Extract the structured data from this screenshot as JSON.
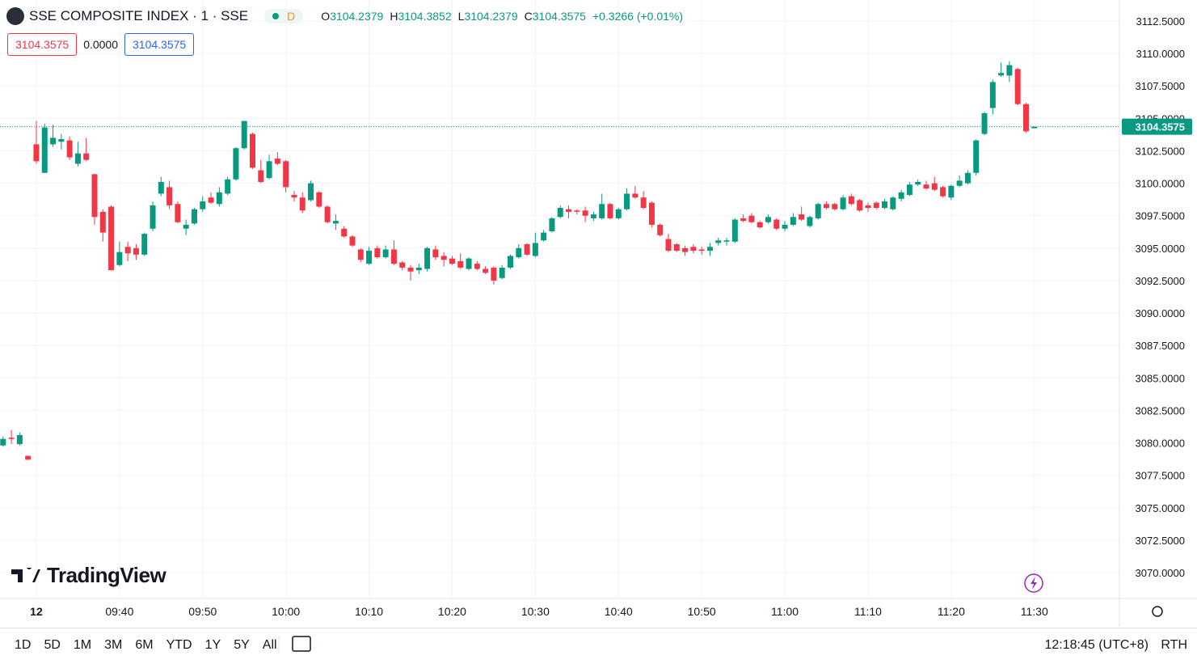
{
  "header": {
    "title": "SSE COMPOSITE INDEX · 1 · SSE",
    "interval_badge": "D",
    "ohlc": [
      {
        "key": "O",
        "value": "3104.2379"
      },
      {
        "key": "H",
        "value": "3104.3852"
      },
      {
        "key": "L",
        "value": "3104.2379"
      },
      {
        "key": "C",
        "value": "3104.3575"
      }
    ],
    "change": "+0.3266 (+0.01%)",
    "boxes": [
      "3104.3575",
      "0.0000",
      "3104.3575"
    ]
  },
  "logo": "TradingView",
  "toolbar": {
    "periods": [
      "1D",
      "5D",
      "1M",
      "3M",
      "6M",
      "YTD",
      "1Y",
      "5Y",
      "All"
    ],
    "clock": "12:18:45 (UTC+8)",
    "session": "RTH"
  },
  "chart_data": {
    "type": "candlestick",
    "up_color": "#089981",
    "down_color": "#f23645",
    "last_price": {
      "value": 3104.3575,
      "label": "3104.3575"
    },
    "ylim": [
      3070,
      3112.5
    ],
    "yticks": [
      {
        "value": 3070,
        "label": "3070.0000"
      },
      {
        "value": 3072.5,
        "label": "3072.5000"
      },
      {
        "value": 3075,
        "label": "3075.0000"
      },
      {
        "value": 3077.5,
        "label": "3077.5000"
      },
      {
        "value": 3080,
        "label": "3080.0000"
      },
      {
        "value": 3082.5,
        "label": "3082.5000"
      },
      {
        "value": 3085,
        "label": "3085.0000"
      },
      {
        "value": 3087.5,
        "label": "3087.5000"
      },
      {
        "value": 3090,
        "label": "3090.0000"
      },
      {
        "value": 3092.5,
        "label": "3092.5000"
      },
      {
        "value": 3095,
        "label": "3095.0000"
      },
      {
        "value": 3097.5,
        "label": "3097.5000"
      },
      {
        "value": 3100,
        "label": "3100.0000"
      },
      {
        "value": 3102.5,
        "label": "3102.5000"
      },
      {
        "value": 3105,
        "label": "3105.0000"
      },
      {
        "value": 3107.5,
        "label": "3107.5000"
      },
      {
        "value": 3110,
        "label": "3110.0000"
      },
      {
        "value": 3112.5,
        "label": "3112.5000"
      }
    ],
    "xticks": [
      {
        "value": 4,
        "label": "12"
      },
      {
        "value": 14,
        "label": "09:40"
      },
      {
        "value": 24,
        "label": "09:50"
      },
      {
        "value": 34,
        "label": "10:00"
      },
      {
        "value": 44,
        "label": "10:10"
      },
      {
        "value": 54,
        "label": "10:20"
      },
      {
        "value": 64,
        "label": "10:30"
      },
      {
        "value": 74,
        "label": "10:40"
      },
      {
        "value": 84,
        "label": "10:50"
      },
      {
        "value": 94,
        "label": "11:00"
      },
      {
        "value": 104,
        "label": "11:10"
      },
      {
        "value": 114,
        "label": "11:20"
      },
      {
        "value": 124,
        "label": "11:30"
      }
    ],
    "grid": true,
    "ohlc": [
      [
        3079.8,
        3080.5,
        3079.7,
        3080.3
      ],
      [
        3080.4,
        3081.0,
        3079.9,
        3080.3
      ],
      [
        3079.9,
        3080.8,
        3079.8,
        3080.6
      ],
      [
        3079.0,
        3079.0,
        3078.7,
        3078.7
      ],
      [
        3103.0,
        3104.8,
        3101.5,
        3101.7
      ],
      [
        3100.8,
        3104.6,
        3100.8,
        3104.3
      ],
      [
        3103.0,
        3104.5,
        3102.8,
        3103.5
      ],
      [
        3103.2,
        3103.8,
        3102.6,
        3103.4
      ],
      [
        3103.3,
        3103.6,
        3101.8,
        3102.0
      ],
      [
        3101.5,
        3103.2,
        3101.3,
        3102.3
      ],
      [
        3102.3,
        3103.5,
        3101.7,
        3101.8
      ],
      [
        3100.7,
        3100.7,
        3096.8,
        3097.4
      ],
      [
        3097.8,
        3098.0,
        3095.5,
        3096.2
      ],
      [
        3098.2,
        3098.3,
        3093.3,
        3093.3
      ],
      [
        3093.7,
        3095.5,
        3093.6,
        3094.7
      ],
      [
        3095.1,
        3095.5,
        3094.0,
        3094.6
      ],
      [
        3095.0,
        3095.3,
        3094.1,
        3094.5
      ],
      [
        3094.5,
        3096.2,
        3094.4,
        3096.1
      ],
      [
        3096.5,
        3098.6,
        3096.3,
        3098.3
      ],
      [
        3099.2,
        3100.5,
        3099.0,
        3100.1
      ],
      [
        3099.7,
        3100.2,
        3098.0,
        3098.3
      ],
      [
        3098.4,
        3098.6,
        3096.9,
        3097.0
      ],
      [
        3096.5,
        3097.2,
        3096.0,
        3096.8
      ],
      [
        3096.9,
        3098.1,
        3096.8,
        3098.0
      ],
      [
        3098.0,
        3099.0,
        3097.8,
        3098.6
      ],
      [
        3098.9,
        3099.3,
        3098.4,
        3098.5
      ],
      [
        3098.4,
        3099.7,
        3098.2,
        3099.3
      ],
      [
        3099.2,
        3100.5,
        3099.1,
        3100.3
      ],
      [
        3100.3,
        3102.8,
        3100.2,
        3102.7
      ],
      [
        3102.7,
        3104.8,
        3102.6,
        3104.8
      ],
      [
        3103.8,
        3103.9,
        3101.1,
        3101.2
      ],
      [
        3101.0,
        3101.8,
        3100.0,
        3100.1
      ],
      [
        3100.4,
        3102.2,
        3100.3,
        3101.7
      ],
      [
        3101.9,
        3102.4,
        3101.4,
        3101.5
      ],
      [
        3101.7,
        3101.8,
        3099.3,
        3099.7
      ],
      [
        3099.1,
        3099.4,
        3098.6,
        3098.9
      ],
      [
        3098.9,
        3099.3,
        3097.7,
        3097.9
      ],
      [
        3098.7,
        3100.2,
        3098.6,
        3100.0
      ],
      [
        3099.3,
        3099.4,
        3098.1,
        3098.2
      ],
      [
        3098.2,
        3098.3,
        3096.9,
        3097.0
      ],
      [
        3096.9,
        3097.6,
        3096.4,
        3097.1
      ],
      [
        3096.5,
        3096.7,
        3095.8,
        3095.9
      ],
      [
        3095.9,
        3096.0,
        3095.1,
        3095.2
      ],
      [
        3094.9,
        3095.0,
        3093.9,
        3094.1
      ],
      [
        3093.8,
        3095.1,
        3093.7,
        3094.8
      ],
      [
        3095.0,
        3095.2,
        3094.2,
        3094.3
      ],
      [
        3094.3,
        3095.2,
        3094.2,
        3094.9
      ],
      [
        3094.9,
        3095.6,
        3093.7,
        3093.8
      ],
      [
        3093.9,
        3094.0,
        3093.3,
        3093.5
      ],
      [
        3093.5,
        3093.7,
        3092.5,
        3093.2
      ],
      [
        3093.3,
        3093.8,
        3093.0,
        3093.5
      ],
      [
        3093.4,
        3095.1,
        3093.2,
        3095.0
      ],
      [
        3094.9,
        3095.2,
        3094.1,
        3094.3
      ],
      [
        3094.4,
        3094.7,
        3093.6,
        3094.1
      ],
      [
        3094.2,
        3094.4,
        3093.7,
        3093.8
      ],
      [
        3094.0,
        3094.6,
        3093.4,
        3093.5
      ],
      [
        3093.4,
        3094.3,
        3093.3,
        3094.2
      ],
      [
        3093.8,
        3094.0,
        3093.3,
        3093.4
      ],
      [
        3093.4,
        3093.6,
        3093.0,
        3093.1
      ],
      [
        3093.5,
        3093.6,
        3092.2,
        3092.5
      ],
      [
        3092.7,
        3093.7,
        3092.6,
        3093.5
      ],
      [
        3093.5,
        3094.5,
        3093.4,
        3094.4
      ],
      [
        3094.3,
        3095.3,
        3094.2,
        3095.0
      ],
      [
        3095.3,
        3095.4,
        3094.4,
        3094.5
      ],
      [
        3094.4,
        3096.2,
        3094.3,
        3095.4
      ],
      [
        3095.6,
        3096.4,
        3095.5,
        3096.2
      ],
      [
        3096.3,
        3097.4,
        3096.2,
        3097.3
      ],
      [
        3097.4,
        3098.3,
        3097.3,
        3098.1
      ],
      [
        3098.0,
        3098.3,
        3097.3,
        3097.8
      ],
      [
        3097.9,
        3098.0,
        3097.6,
        3097.8
      ],
      [
        3097.9,
        3098.2,
        3097.0,
        3097.5
      ],
      [
        3097.3,
        3097.8,
        3097.1,
        3097.6
      ],
      [
        3097.3,
        3099.2,
        3097.2,
        3098.4
      ],
      [
        3098.4,
        3098.5,
        3097.2,
        3097.3
      ],
      [
        3097.3,
        3098.1,
        3097.2,
        3098.0
      ],
      [
        3098.0,
        3099.6,
        3097.9,
        3099.2
      ],
      [
        3099.2,
        3099.8,
        3098.8,
        3098.9
      ],
      [
        3098.9,
        3099.4,
        3098.0,
        3098.1
      ],
      [
        3098.5,
        3098.6,
        3096.6,
        3096.8
      ],
      [
        3096.8,
        3096.9,
        3095.9,
        3096.0
      ],
      [
        3095.7,
        3096.1,
        3094.7,
        3094.8
      ],
      [
        3095.3,
        3095.4,
        3094.7,
        3094.8
      ],
      [
        3095.0,
        3095.2,
        3094.4,
        3094.7
      ],
      [
        3095.1,
        3095.3,
        3094.6,
        3094.8
      ],
      [
        3094.9,
        3095.1,
        3094.5,
        3094.8
      ],
      [
        3094.8,
        3095.4,
        3094.4,
        3095.1
      ],
      [
        3095.4,
        3095.8,
        3095.2,
        3095.6
      ],
      [
        3095.5,
        3095.8,
        3095.2,
        3095.6
      ],
      [
        3095.5,
        3097.3,
        3095.4,
        3097.2
      ],
      [
        3097.3,
        3097.6,
        3097.0,
        3097.1
      ],
      [
        3097.5,
        3097.7,
        3096.9,
        3097.0
      ],
      [
        3097.0,
        3097.1,
        3096.5,
        3096.6
      ],
      [
        3097.0,
        3097.6,
        3096.9,
        3097.4
      ],
      [
        3097.2,
        3097.3,
        3096.4,
        3096.5
      ],
      [
        3096.5,
        3097.1,
        3096.3,
        3096.8
      ],
      [
        3096.8,
        3097.7,
        3096.7,
        3097.4
      ],
      [
        3097.6,
        3098.2,
        3097.1,
        3097.2
      ],
      [
        3096.7,
        3097.5,
        3096.6,
        3097.4
      ],
      [
        3097.3,
        3098.5,
        3097.2,
        3098.4
      ],
      [
        3098.4,
        3098.6,
        3098.0,
        3098.1
      ],
      [
        3098.4,
        3098.5,
        3097.9,
        3098.0
      ],
      [
        3098.0,
        3099.1,
        3097.9,
        3098.9
      ],
      [
        3099.0,
        3099.2,
        3098.3,
        3098.4
      ],
      [
        3098.7,
        3098.8,
        3097.8,
        3097.9
      ],
      [
        3098.3,
        3098.5,
        3097.8,
        3098.1
      ],
      [
        3098.5,
        3098.6,
        3098.0,
        3098.1
      ],
      [
        3098.1,
        3098.8,
        3098.0,
        3098.6
      ],
      [
        3098.0,
        3099.0,
        3097.9,
        3098.9
      ],
      [
        3098.8,
        3099.5,
        3098.6,
        3099.3
      ],
      [
        3099.1,
        3100.1,
        3099.0,
        3099.9
      ],
      [
        3099.9,
        3100.3,
        3099.8,
        3100.1
      ],
      [
        3099.9,
        3100.2,
        3099.5,
        3099.6
      ],
      [
        3100.0,
        3100.5,
        3099.4,
        3099.5
      ],
      [
        3099.7,
        3099.8,
        3098.9,
        3099.0
      ],
      [
        3098.9,
        3099.9,
        3098.7,
        3099.8
      ],
      [
        3099.8,
        3100.6,
        3099.7,
        3100.2
      ],
      [
        3100.0,
        3101.0,
        3099.9,
        3100.8
      ],
      [
        3100.8,
        3103.4,
        3100.6,
        3103.3
      ],
      [
        3103.8,
        3105.5,
        3103.7,
        3105.4
      ],
      [
        3105.8,
        3108.0,
        3105.3,
        3107.8
      ],
      [
        3108.3,
        3109.3,
        3108.2,
        3108.5
      ],
      [
        3108.3,
        3109.4,
        3107.8,
        3109.1
      ],
      [
        3108.8,
        3108.9,
        3106.0,
        3106.1
      ],
      [
        3106.1,
        3106.2,
        3103.9,
        3104.0
      ],
      [
        3104.2379,
        3104.3852,
        3104.2379,
        3104.3575
      ]
    ]
  }
}
